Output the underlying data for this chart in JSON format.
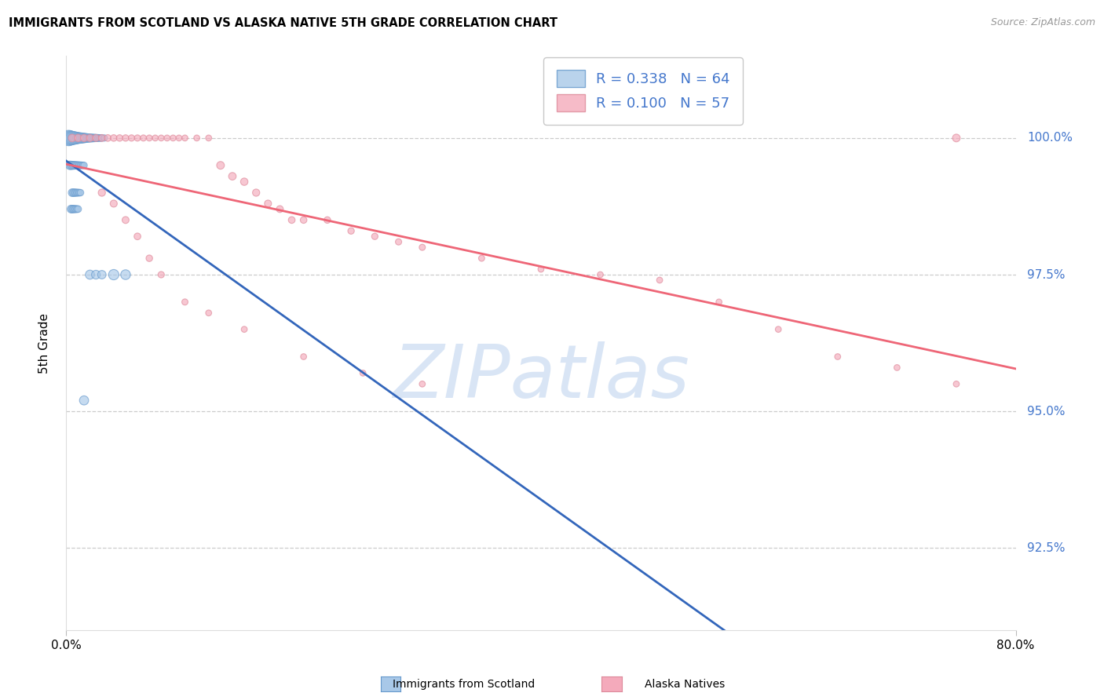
{
  "title": "IMMIGRANTS FROM SCOTLAND VS ALASKA NATIVE 5TH GRADE CORRELATION CHART",
  "source": "Source: ZipAtlas.com",
  "ylabel": "5th Grade",
  "ytick_vals": [
    92.5,
    95.0,
    97.5,
    100.0
  ],
  "ytick_labels": [
    "92.5%",
    "95.0%",
    "97.5%",
    "100.0%"
  ],
  "xlim": [
    0.0,
    80.0
  ],
  "ylim": [
    91.0,
    101.5
  ],
  "xtick_vals": [
    0.0,
    80.0
  ],
  "xtick_labels": [
    "0.0%",
    "80.0%"
  ],
  "legend_r_blue": "R = 0.338",
  "legend_n_blue": "N = 64",
  "legend_r_pink": "R = 0.100",
  "legend_n_pink": "N = 57",
  "blue_fill": "#A8C8E8",
  "blue_edge": "#6699CC",
  "pink_fill": "#F4AABB",
  "pink_edge": "#DD8899",
  "trend_blue": "#3366BB",
  "trend_pink": "#EE6677",
  "watermark_color": "#D0DDEF",
  "blue_x": [
    0.2,
    0.3,
    0.4,
    0.5,
    0.6,
    0.7,
    0.8,
    0.9,
    1.0,
    1.1,
    1.2,
    1.3,
    1.4,
    1.5,
    1.6,
    1.7,
    1.8,
    1.9,
    2.0,
    2.1,
    2.2,
    2.3,
    2.4,
    2.5,
    2.6,
    2.7,
    2.8,
    2.9,
    3.0,
    3.2,
    0.3,
    0.4,
    0.5,
    0.6,
    0.7,
    0.8,
    0.9,
    1.0,
    1.1,
    1.2,
    1.3,
    1.4,
    1.5,
    0.5,
    0.6,
    0.7,
    0.8,
    0.9,
    1.0,
    1.1,
    1.2,
    0.4,
    0.5,
    0.6,
    0.7,
    0.8,
    0.9,
    1.0,
    4.0,
    5.0,
    2.0,
    2.5,
    3.0,
    1.5
  ],
  "blue_y": [
    100.0,
    100.0,
    100.0,
    100.0,
    100.0,
    100.0,
    100.0,
    100.0,
    100.0,
    100.0,
    100.0,
    100.0,
    100.0,
    100.0,
    100.0,
    100.0,
    100.0,
    100.0,
    100.0,
    100.0,
    100.0,
    100.0,
    100.0,
    100.0,
    100.0,
    100.0,
    100.0,
    100.0,
    100.0,
    100.0,
    99.5,
    99.5,
    99.5,
    99.5,
    99.5,
    99.5,
    99.5,
    99.5,
    99.5,
    99.5,
    99.5,
    99.5,
    99.5,
    99.0,
    99.0,
    99.0,
    99.0,
    99.0,
    99.0,
    99.0,
    99.0,
    98.7,
    98.7,
    98.7,
    98.7,
    98.7,
    98.7,
    98.7,
    97.5,
    97.5,
    97.5,
    97.5,
    97.5,
    95.2
  ],
  "blue_sizes": [
    200,
    180,
    160,
    150,
    140,
    130,
    120,
    110,
    100,
    95,
    90,
    85,
    80,
    75,
    70,
    65,
    60,
    58,
    55,
    52,
    50,
    48,
    46,
    44,
    42,
    40,
    38,
    36,
    35,
    34,
    60,
    58,
    55,
    52,
    50,
    48,
    46,
    44,
    42,
    40,
    38,
    36,
    35,
    50,
    48,
    46,
    44,
    42,
    40,
    38,
    36,
    50,
    48,
    46,
    44,
    42,
    40,
    38,
    90,
    80,
    70,
    65,
    60,
    70
  ],
  "pink_x": [
    0.5,
    1.0,
    1.5,
    2.0,
    2.5,
    3.0,
    3.5,
    4.0,
    4.5,
    5.0,
    5.5,
    6.0,
    6.5,
    7.0,
    7.5,
    8.0,
    8.5,
    9.0,
    9.5,
    10.0,
    11.0,
    12.0,
    13.0,
    14.0,
    15.0,
    16.0,
    17.0,
    18.0,
    19.0,
    20.0,
    22.0,
    24.0,
    26.0,
    28.0,
    30.0,
    35.0,
    40.0,
    45.0,
    50.0,
    55.0,
    60.0,
    65.0,
    70.0,
    75.0,
    3.0,
    4.0,
    5.0,
    6.0,
    7.0,
    8.0,
    10.0,
    12.0,
    15.0,
    20.0,
    25.0,
    30.0,
    75.0
  ],
  "pink_y": [
    100.0,
    100.0,
    100.0,
    100.0,
    100.0,
    100.0,
    100.0,
    100.0,
    100.0,
    100.0,
    100.0,
    100.0,
    100.0,
    100.0,
    100.0,
    100.0,
    100.0,
    100.0,
    100.0,
    100.0,
    100.0,
    100.0,
    99.5,
    99.3,
    99.2,
    99.0,
    98.8,
    98.7,
    98.5,
    98.5,
    98.5,
    98.3,
    98.2,
    98.1,
    98.0,
    97.8,
    97.6,
    97.5,
    97.4,
    97.0,
    96.5,
    96.0,
    95.8,
    95.5,
    99.0,
    98.8,
    98.5,
    98.2,
    97.8,
    97.5,
    97.0,
    96.8,
    96.5,
    96.0,
    95.7,
    95.5,
    100.0
  ],
  "pink_sizes": [
    50,
    48,
    46,
    44,
    42,
    40,
    38,
    37,
    36,
    35,
    34,
    33,
    32,
    31,
    30,
    30,
    30,
    30,
    30,
    30,
    30,
    30,
    50,
    48,
    46,
    44,
    42,
    40,
    38,
    37,
    36,
    35,
    34,
    33,
    32,
    31,
    30,
    30,
    30,
    30,
    30,
    30,
    30,
    30,
    44,
    42,
    40,
    38,
    36,
    34,
    32,
    30,
    30,
    30,
    30,
    30,
    50
  ]
}
